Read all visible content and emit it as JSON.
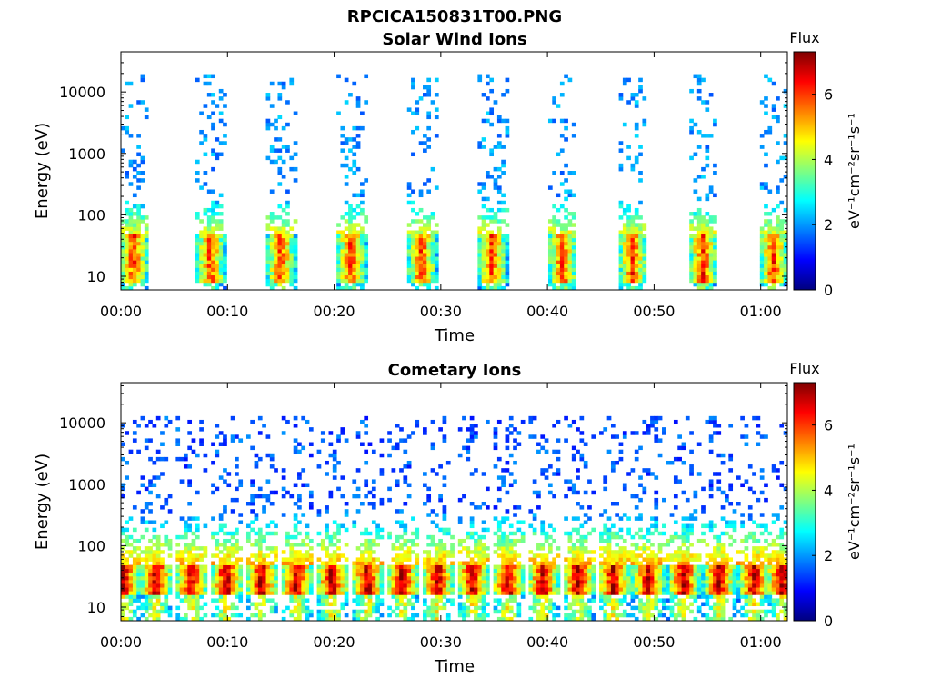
{
  "figure_title": "RPCICA150831T00.PNG",
  "colormap": [
    "#00007f",
    "#0000ff",
    "#007fff",
    "#00ffff",
    "#7fff7f",
    "#ffff00",
    "#ff7f00",
    "#ff0000",
    "#7f0000"
  ],
  "chart_data": [
    {
      "type": "heatmap",
      "title": "Solar Wind Ions",
      "xlabel": "Time",
      "ylabel": "Energy (eV)",
      "y_scale": "log",
      "xlim_minutes": [
        0,
        62.5
      ],
      "ylim": [
        6,
        45000
      ],
      "x_ticks": [
        {
          "minute": 0,
          "label": "00:00"
        },
        {
          "minute": 10,
          "label": "00:10"
        },
        {
          "minute": 20,
          "label": "00:20"
        },
        {
          "minute": 30,
          "label": "00:30"
        },
        {
          "minute": 40,
          "label": "00:40"
        },
        {
          "minute": 50,
          "label": "00:50"
        },
        {
          "minute": 60,
          "label": "01:00"
        }
      ],
      "y_ticks": [
        {
          "value": 10,
          "label": "10"
        },
        {
          "value": 100,
          "label": "100"
        },
        {
          "value": 1000,
          "label": "1000"
        },
        {
          "value": 10000,
          "label": "10000"
        }
      ],
      "colorbar": {
        "title": "Flux",
        "label": "eV⁻¹cm⁻²sr⁻¹s⁻¹",
        "range": [
          0,
          7.3
        ],
        "ticks": [
          "0",
          "2",
          "4",
          "6"
        ]
      },
      "sweep_minutes": [
        1.2,
        8.4,
        15.0,
        21.6,
        28.2,
        34.8,
        41.4,
        48.0,
        54.6,
        61.2
      ],
      "sweep_width_minutes": 2.7,
      "features": {
        "core_energy_eV": [
          15,
          45
        ],
        "core_flux": 6.0,
        "scatter_energy_eV": [
          200,
          20000
        ],
        "scatter_flux": 2.0
      }
    },
    {
      "type": "heatmap",
      "title": "Cometary Ions",
      "xlabel": "Time",
      "ylabel": "Energy (eV)",
      "y_scale": "log",
      "xlim_minutes": [
        0,
        62.5
      ],
      "ylim": [
        6,
        45000
      ],
      "x_ticks": [
        {
          "minute": 0,
          "label": "00:00"
        },
        {
          "minute": 10,
          "label": "00:10"
        },
        {
          "minute": 20,
          "label": "00:20"
        },
        {
          "minute": 30,
          "label": "00:30"
        },
        {
          "minute": 40,
          "label": "00:40"
        },
        {
          "minute": 50,
          "label": "00:50"
        },
        {
          "minute": 60,
          "label": "01:00"
        }
      ],
      "y_ticks": [
        {
          "value": 10,
          "label": "10"
        },
        {
          "value": 100,
          "label": "100"
        },
        {
          "value": 1000,
          "label": "1000"
        },
        {
          "value": 10000,
          "label": "10000"
        }
      ],
      "colorbar": {
        "title": "Flux",
        "label": "eV⁻¹cm⁻²sr⁻¹s⁻¹",
        "range": [
          0,
          7.3
        ],
        "ticks": [
          "0",
          "2",
          "4",
          "6"
        ]
      },
      "sweep_minutes": [
        0.2,
        3.3,
        6.6,
        9.9,
        13.2,
        16.5,
        19.8,
        23.1,
        26.4,
        29.7,
        33.0,
        36.3,
        39.6,
        42.9,
        46.2,
        49.5,
        52.8,
        56.1,
        59.4,
        62.0
      ],
      "sweep_width_minutes": 2.9,
      "features": {
        "core_energy_eV": [
          30,
          45
        ],
        "core_flux": 7.0,
        "scatter_energy_eV": [
          400,
          12000
        ],
        "scatter_flux": 1.5
      }
    }
  ]
}
